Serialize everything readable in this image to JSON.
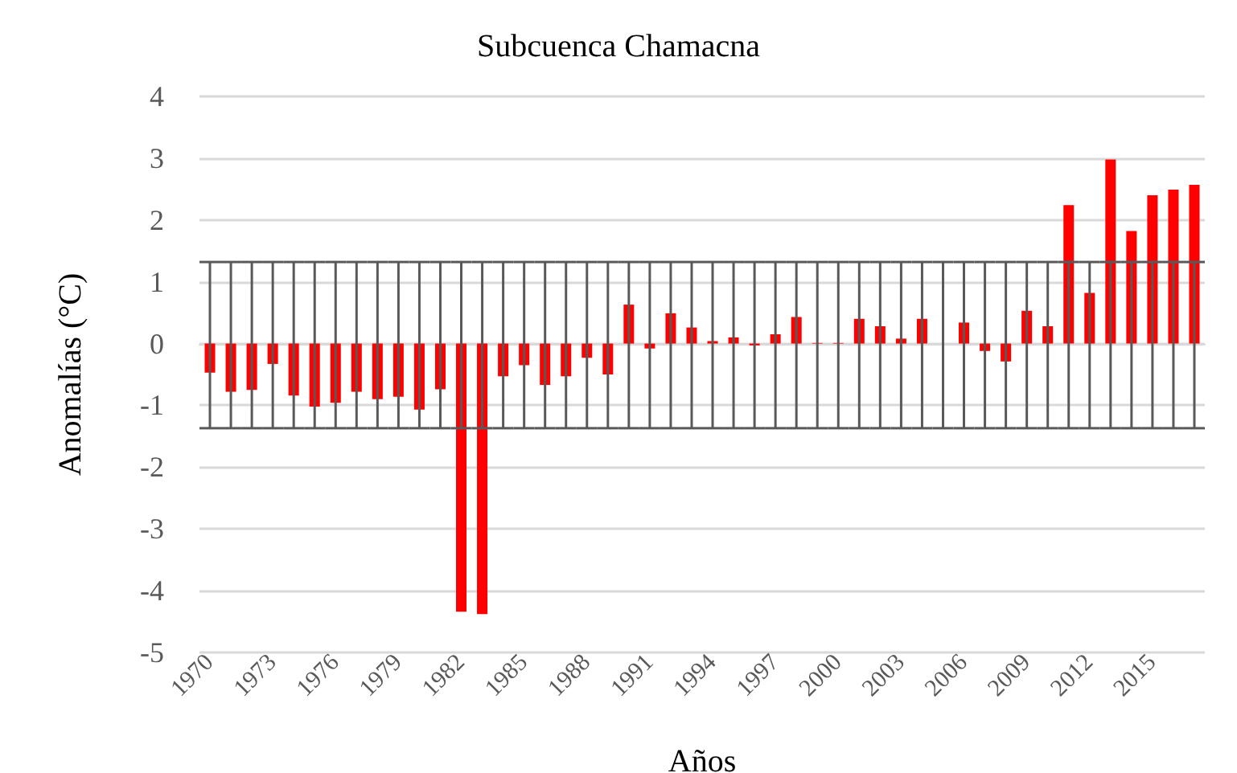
{
  "chart_data": {
    "type": "bar",
    "title": "Subcuenca Chamacna",
    "xlabel": "Años",
    "ylabel": "Anomalías (°C)",
    "categories": [
      "1970",
      null,
      null,
      "1973",
      null,
      null,
      "1976",
      null,
      null,
      "1979",
      null,
      null,
      "1982",
      null,
      null,
      "1985",
      null,
      null,
      "1988",
      null,
      null,
      "1991",
      null,
      null,
      "1994",
      null,
      null,
      "1997",
      null,
      null,
      "2000",
      null,
      null,
      "2003",
      null,
      null,
      "2006",
      null,
      null,
      "2009",
      null,
      null,
      "2012",
      null,
      null,
      "2015",
      null,
      null
    ],
    "values": [
      -0.47,
      -0.78,
      -0.75,
      -0.33,
      -0.84,
      -1.02,
      -0.96,
      -0.78,
      -0.9,
      -0.86,
      -1.07,
      -0.74,
      -4.34,
      -4.38,
      -0.53,
      -0.35,
      -0.67,
      -0.53,
      -0.23,
      -0.5,
      0.63,
      -0.08,
      0.49,
      0.26,
      0.04,
      0.1,
      -0.03,
      0.15,
      0.43,
      0.01,
      0.01,
      0.4,
      0.28,
      0.08,
      0.4,
      0,
      0.34,
      -0.12,
      -0.29,
      0.53,
      0.28,
      2.24,
      0.82,
      2.98,
      1.82,
      2.4,
      2.49,
      2.57
    ],
    "color": "#ff0000",
    "errors": [
      [
        -1.37,
        1.32
      ],
      [
        -1.37,
        1.32
      ],
      [
        -1.37,
        1.32
      ],
      [
        -1.37,
        1.32
      ],
      [
        -1.37,
        1.32
      ],
      [
        -1.37,
        1.32
      ],
      [
        -1.37,
        1.32
      ],
      [
        -1.37,
        1.32
      ],
      [
        -1.37,
        1.32
      ],
      [
        -1.37,
        1.32
      ],
      [
        -1.37,
        1.32
      ],
      [
        -1.37,
        1.32
      ],
      [
        -1.37,
        1.32
      ],
      [
        -1.37,
        1.32
      ],
      [
        -1.37,
        1.32
      ],
      [
        -1.37,
        1.32
      ],
      [
        -1.37,
        1.32
      ],
      [
        -1.37,
        1.32
      ],
      [
        -1.37,
        1.32
      ],
      [
        -1.37,
        1.32
      ],
      [
        -1.37,
        1.32
      ],
      [
        -1.37,
        1.32
      ],
      [
        -1.37,
        1.32
      ],
      [
        -1.37,
        1.32
      ],
      [
        -1.37,
        1.32
      ],
      [
        -1.37,
        1.32
      ],
      [
        -1.37,
        1.32
      ],
      [
        -1.37,
        1.32
      ],
      [
        -1.37,
        1.32
      ],
      [
        -1.37,
        1.32
      ],
      [
        -1.37,
        1.32
      ],
      [
        -1.37,
        1.32
      ],
      [
        -1.37,
        1.32
      ],
      [
        -1.37,
        1.32
      ],
      [
        -1.37,
        1.32
      ],
      [
        -1.37,
        1.32
      ],
      [
        -1.37,
        1.32
      ],
      [
        -1.37,
        1.32
      ],
      [
        -1.37,
        1.32
      ],
      [
        -1.37,
        1.32
      ],
      [
        -1.37,
        1.32
      ],
      [
        -1.37,
        1.32
      ],
      [
        -1.37,
        1.32
      ],
      [
        -1.37,
        1.32
      ],
      [
        -1.37,
        1.32
      ],
      [
        -1.37,
        1.32
      ],
      [
        -1.37,
        1.32
      ],
      [
        -1.37,
        1.32
      ]
    ],
    "ylim": [
      -5,
      4
    ],
    "yticks": [
      -5,
      -4,
      -3,
      -2,
      -1,
      0,
      1,
      2,
      3,
      4
    ],
    "grid": "y"
  }
}
